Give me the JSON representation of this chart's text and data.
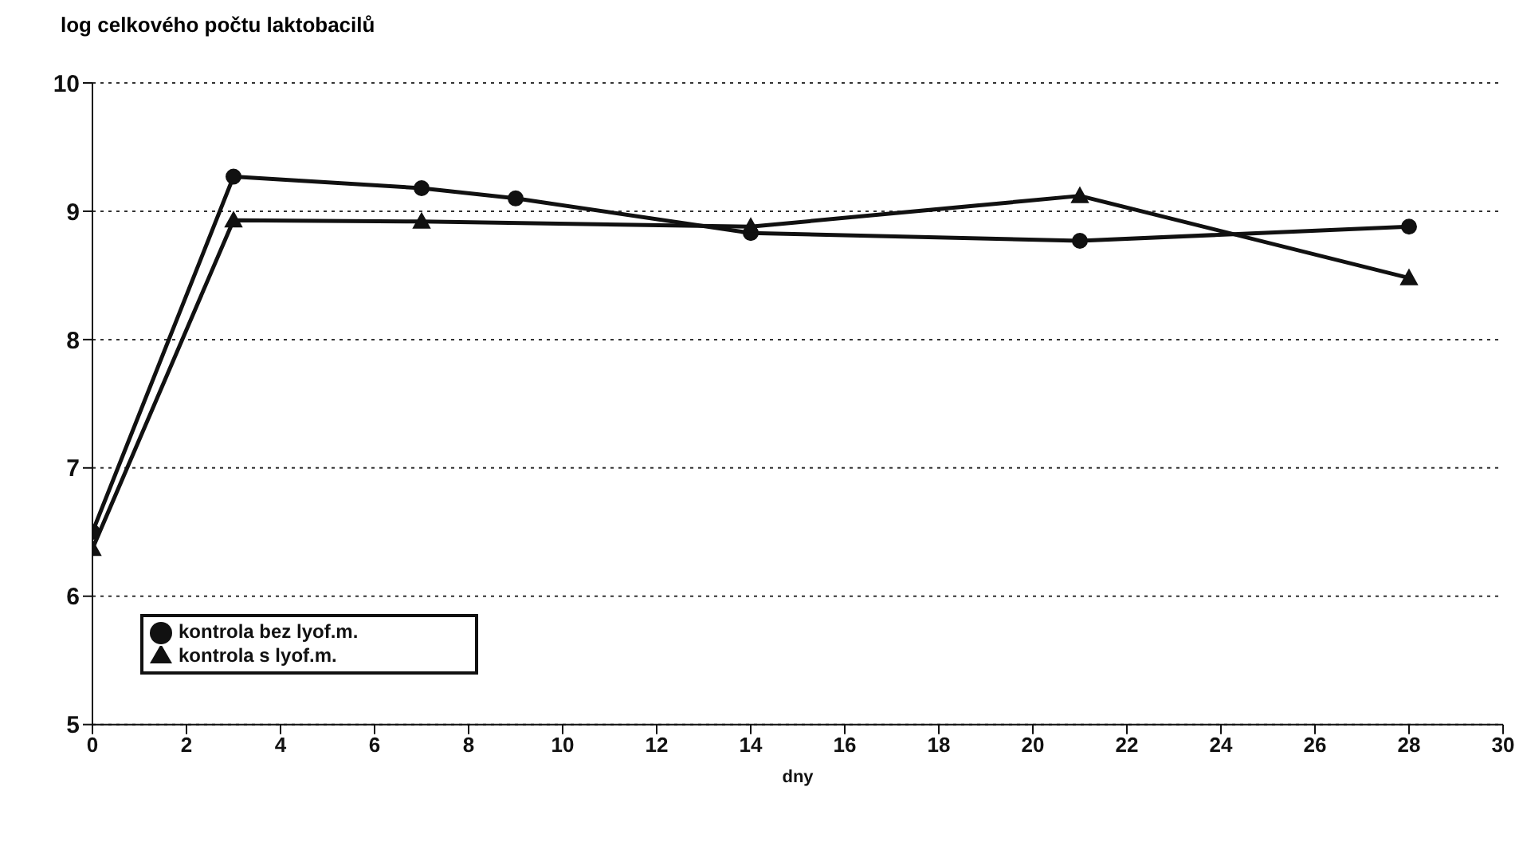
{
  "chart_data": {
    "type": "line",
    "ylabel": "log celkového počtu laktobacilů",
    "xlabel": "dny",
    "xlim": [
      0,
      30
    ],
    "xticks": [
      0,
      2,
      4,
      6,
      8,
      10,
      12,
      14,
      16,
      18,
      20,
      22,
      24,
      26,
      28,
      30
    ],
    "ylim": [
      5,
      10
    ],
    "yticks": [
      5,
      6,
      7,
      8,
      9,
      10
    ],
    "grid": "y",
    "legend": "bottom left",
    "line_style": "solid",
    "series": [
      {
        "name": "kontrola bez lyof.m.",
        "color": "#111111",
        "marker": "circle",
        "x": [
          0,
          3,
          7,
          9,
          14,
          21,
          28
        ],
        "values": [
          6.5,
          9.27,
          9.18,
          9.1,
          8.83,
          8.77,
          8.88
        ]
      },
      {
        "name": "kontrola s lyof.m.",
        "color": "#111111",
        "marker": "triangle",
        "x": [
          0,
          3,
          7,
          14,
          21,
          28
        ],
        "values": [
          6.37,
          8.93,
          8.92,
          8.88,
          9.12,
          8.48
        ]
      }
    ]
  }
}
